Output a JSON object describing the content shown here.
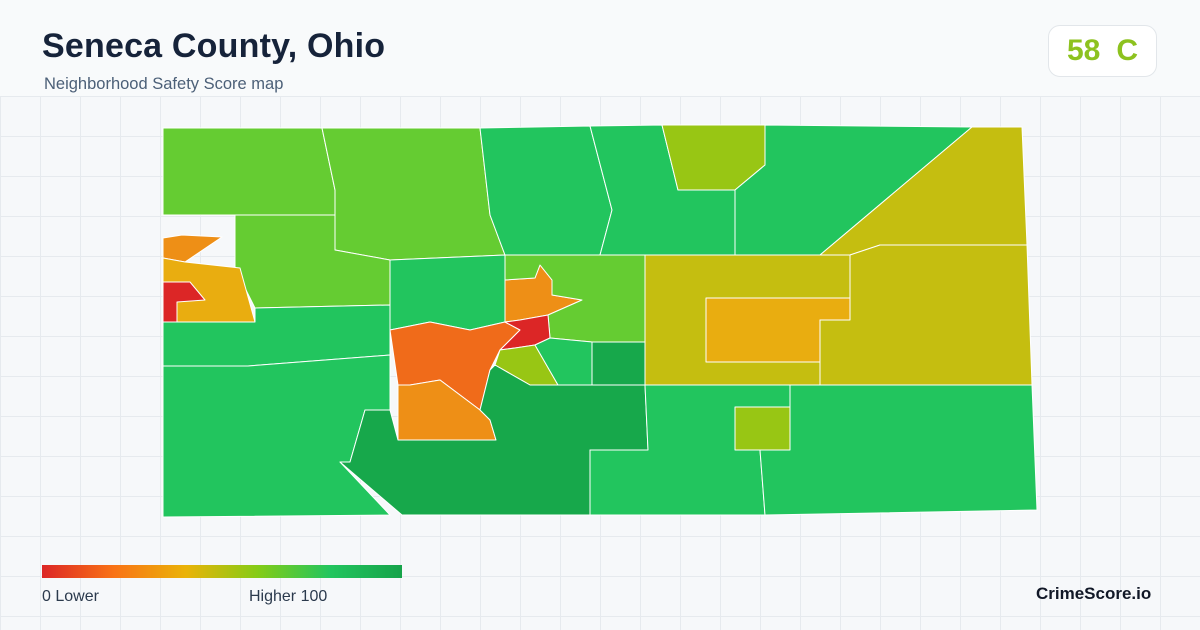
{
  "header": {
    "title": "Seneca County, Ohio",
    "subtitle": "Neighborhood Safety Score map"
  },
  "score": {
    "value": "58",
    "grade": "C",
    "color": "#8dc21f"
  },
  "legend": {
    "min_label": "0  Lower",
    "max_label": "Higher  100",
    "colors": [
      "#dc2626",
      "#f97316",
      "#eab308",
      "#84cc16",
      "#22c55e",
      "#16a34a"
    ]
  },
  "brand": {
    "name": "CrimeScore.io"
  },
  "map": {
    "colors": {
      "very_low": "#dc2626",
      "low": "#f06b1a",
      "below_avg": "#ee8f16",
      "mid_low": "#e9ad10",
      "mid": "#c5be10",
      "mid_high": "#98c614",
      "high": "#65cc32",
      "very_high": "#22c55e",
      "top": "#17a84b"
    }
  }
}
